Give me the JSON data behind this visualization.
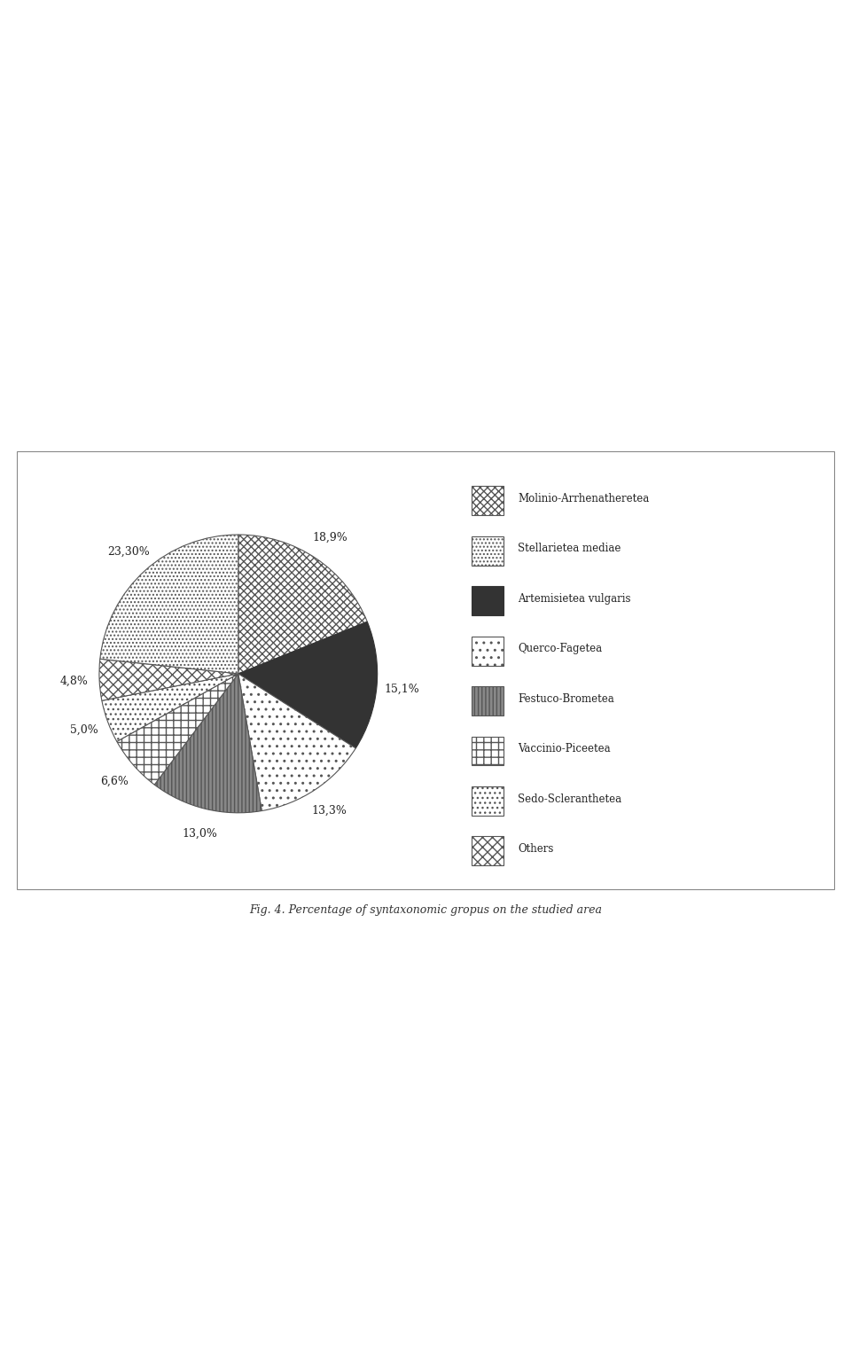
{
  "slices": [
    {
      "label": "Molinio-Arrhenatheretea",
      "value": 18.9,
      "pct": "18,9%"
    },
    {
      "label": "Stellarietea mediae",
      "value": 23.3,
      "pct": "23,30%"
    },
    {
      "label": "Artemisietea vulgaris",
      "value": 15.1,
      "pct": "15,1%"
    },
    {
      "label": "Querco-Fagetea",
      "value": 13.3,
      "pct": "13,3%"
    },
    {
      "label": "Festuco-Brometea",
      "value": 13.0,
      "pct": "13,0%"
    },
    {
      "label": "Vaccinio-Piceetea",
      "value": 6.6,
      "pct": "6,6%"
    },
    {
      "label": "Sedo-Scleranthetea",
      "value": 5.0,
      "pct": "5,0%"
    },
    {
      "label": "Others",
      "value": 4.8,
      "pct": "4,8%"
    }
  ],
  "caption": "Fig. 4. Percentage of syntaxonomic gropus on the studied area",
  "background_color": "#ffffff",
  "box_color": "#ffffff",
  "border_color": "#aaaaaa"
}
